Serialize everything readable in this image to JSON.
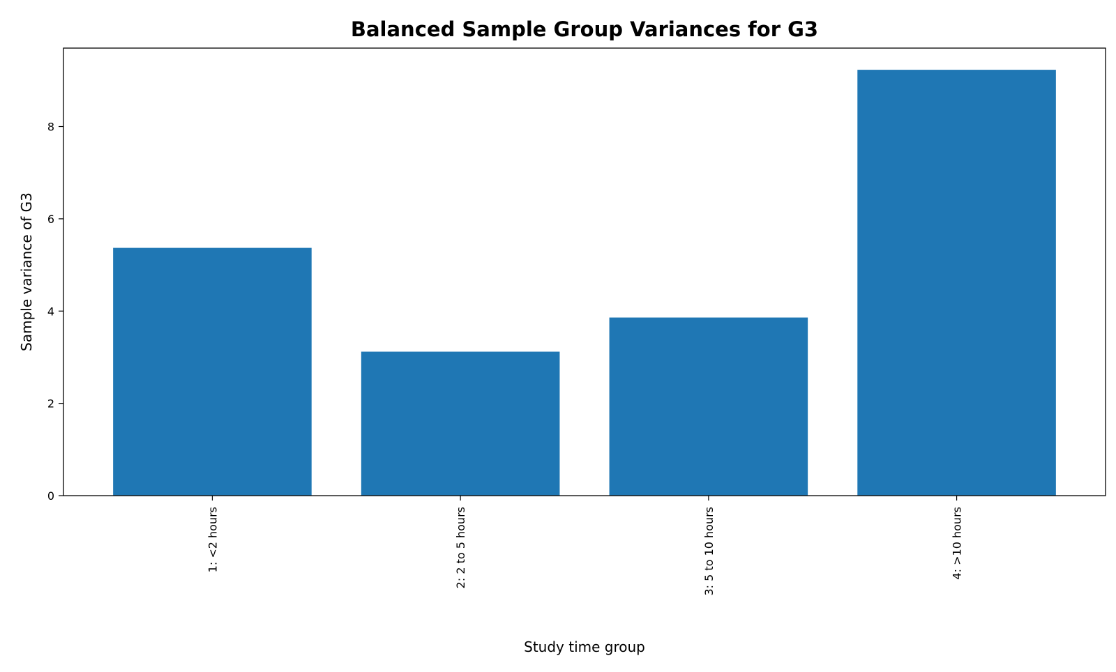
{
  "chart_data": {
    "type": "bar",
    "title": "Balanced Sample Group Variances for G3",
    "xlabel": "Study time group",
    "ylabel": "Sample variance of G3",
    "categories": [
      "1: <2 hours",
      "2: 2 to 5 hours",
      "3: 5 to 10 hours",
      "4: >10 hours"
    ],
    "values": [
      5.37,
      3.12,
      3.86,
      9.23
    ],
    "ylim": [
      0,
      9.7
    ],
    "yticks": [
      0,
      2,
      4,
      6,
      8
    ],
    "grid": false,
    "legend": "none",
    "bar_color": "#1f77b4",
    "x_tick_rotation": "vertical"
  }
}
